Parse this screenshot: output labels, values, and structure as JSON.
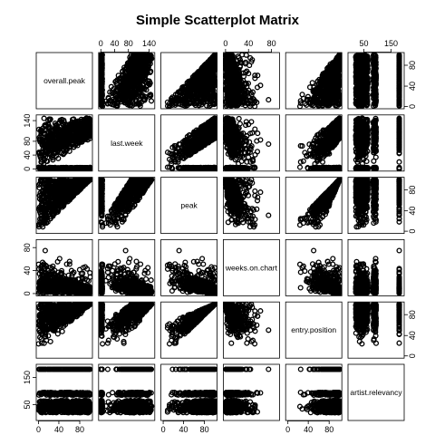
{
  "chart_data": {
    "type": "scatter",
    "layout": "scatterplot-matrix",
    "title": "Simple Scatterplot Matrix",
    "variables": [
      "overall.peak",
      "last.week",
      "peak",
      "weeks.on.chart",
      "entry.position",
      "artist.relevancy"
    ],
    "axes": {
      "overall.peak": {
        "range": [
          1,
          100
        ],
        "ticks": [
          0,
          40,
          80
        ]
      },
      "last.week": {
        "range": [
          0,
          150
        ],
        "ticks": [
          0,
          40,
          80,
          140
        ]
      },
      "peak": {
        "range": [
          1,
          100
        ],
        "ticks": [
          0,
          40,
          80
        ]
      },
      "weeks.on.chart": {
        "range": [
          0,
          90
        ],
        "ticks": [
          0,
          40,
          80
        ]
      },
      "entry.position": {
        "range": [
          1,
          100
        ],
        "ticks": [
          0,
          40,
          80
        ]
      },
      "artist.relevancy": {
        "range": [
          0,
          190
        ],
        "ticks": [
          50,
          150
        ]
      }
    },
    "tick_labels": {
      "top": [
        "0 40 80 140",
        "0 40 80"
      ],
      "bottom": [
        "0 40 80",
        "0 40 80",
        "0 40 80"
      ],
      "left": [
        "0 40 80",
        "0 40 80",
        "50 150"
      ],
      "right": [
        "0 40 80",
        "0 40 80",
        "0 40 80"
      ]
    },
    "point_style": "open circle, dense overplotting",
    "grid": false,
    "legend": "none"
  }
}
